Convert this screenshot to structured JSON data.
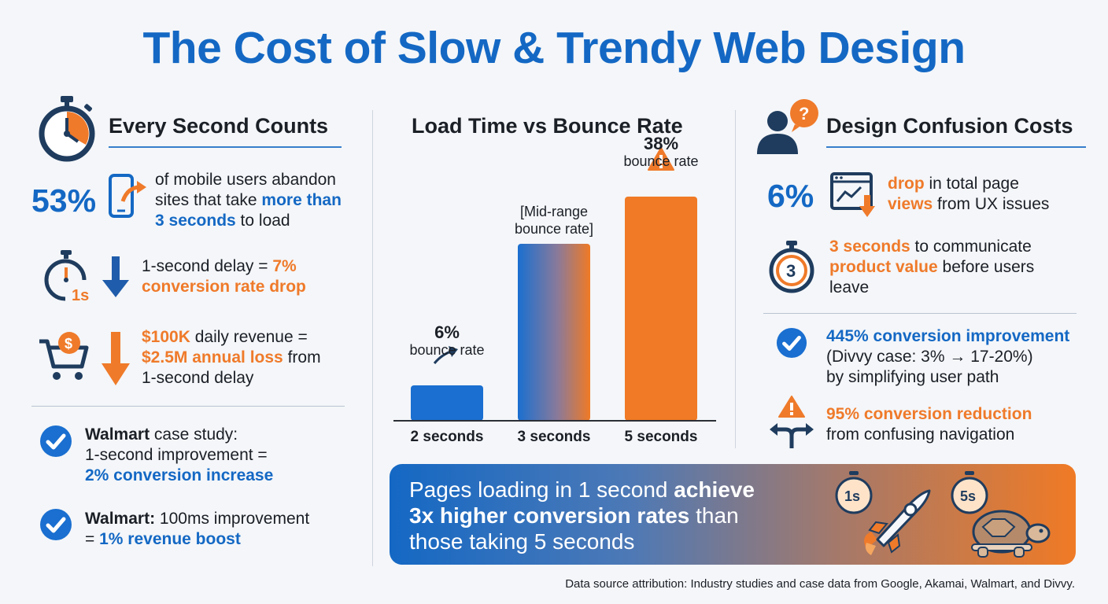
{
  "title": "The Cost of Slow & Trendy Web Design",
  "left": {
    "heading": "Every Second Counts",
    "stat1": {
      "value": "53%",
      "l1": "of mobile users abandon",
      "l2a": "sites that take ",
      "l2b": "more than",
      "l3a": "3 seconds",
      "l3b": " to load"
    },
    "stat2": {
      "icon_label": "1s",
      "l1a": "1-second delay = ",
      "l1b": "7%",
      "l2": "conversion rate drop"
    },
    "stat3": {
      "l1a": "$100K",
      "l1b": " daily revenue =",
      "l2a": "$2.5M annual loss",
      "l2b": " from",
      "l3": "1-second delay"
    },
    "case1": {
      "l1a": "Walmart",
      "l1b": " case study:",
      "l2": "1-second improvement =",
      "l3": "2% conversion increase"
    },
    "case2": {
      "l1a": "Walmart:",
      "l1b": " 100ms improvement",
      "l2a": "= ",
      "l2b": "1% revenue boost"
    }
  },
  "middle": {
    "heading": "Load Time vs Bounce Rate"
  },
  "chart_data": {
    "type": "bar",
    "title": "Load Time vs Bounce Rate",
    "categories": [
      "2 seconds",
      "3 seconds",
      "5 seconds"
    ],
    "values": [
      6,
      null,
      38
    ],
    "value_labels": [
      "6%",
      "[Mid-range",
      "38%"
    ],
    "value_sublabels": [
      "bounce rate",
      "bounce rate]",
      "bounce rate"
    ],
    "colors": [
      "#1a6fd0",
      "gradient",
      "#f07a25"
    ]
  },
  "right": {
    "heading": "Design Confusion Costs",
    "stat1": {
      "value": "6%",
      "l1a": "drop",
      "l1b": " in total page",
      "l2a": "views",
      "l2b": " from UX issues"
    },
    "stat2": {
      "icon_label": "3",
      "l1a": "3 seconds",
      "l1b": " to communicate",
      "l2a": "product value",
      "l2b": " before users",
      "l3": "leave"
    },
    "case1": {
      "l1": "445% conversion improvement",
      "l2": "(Divvy case: 3% → 17-20%)",
      "l3": "by simplifying user path"
    },
    "case2": {
      "l1": "95% conversion reduction",
      "l2": "from confusing navigation"
    }
  },
  "banner": {
    "l1a": "Pages loading in 1 second ",
    "l1b": "achieve",
    "l2a": "3x higher conversion rates",
    "l2b": " than",
    "l3": "those taking 5 seconds",
    "badge_fast": "1s",
    "badge_slow": "5s"
  },
  "source": "Data source attribution: Industry studies and case data from Google, Akamai, Walmart, and Divvy."
}
